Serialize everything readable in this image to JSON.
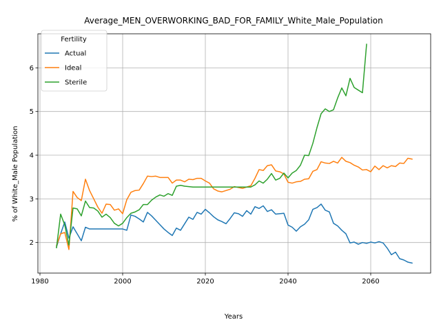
{
  "chart_data": {
    "type": "line",
    "title": "Average_MEN_OVERWORKING_BAD_FOR_FAMILY_White_Male_Population",
    "xlabel": "Years",
    "ylabel": "% of White_Male Population",
    "xlim": [
      1979.5,
      2074.5
    ],
    "ylim": [
      1.3,
      6.78
    ],
    "xticks": [
      1980,
      2000,
      2020,
      2040,
      2060
    ],
    "yticks": [
      2,
      3,
      4,
      5,
      6
    ],
    "grid": true,
    "legend": {
      "title": "Fertility",
      "position": "top-left"
    },
    "series": [
      {
        "name": "Actual",
        "color": "#1f77b4",
        "x": [
          1984,
          1985,
          1986,
          1987,
          1988,
          1989,
          1990,
          1991,
          1992,
          1993,
          1994,
          1995,
          1996,
          1997,
          1998,
          1999,
          2000,
          2001,
          2002,
          2003,
          2004,
          2005,
          2006,
          2007,
          2008,
          2009,
          2010,
          2011,
          2012,
          2013,
          2014,
          2015,
          2016,
          2017,
          2018,
          2019,
          2020,
          2021,
          2022,
          2023,
          2024,
          2025,
          2026,
          2027,
          2028,
          2029,
          2030,
          2031,
          2032,
          2033,
          2034,
          2035,
          2036,
          2037,
          2038,
          2039,
          2040,
          2041,
          2042,
          2043,
          2044,
          2045,
          2046,
          2047,
          2048,
          2049,
          2050,
          2051,
          2052,
          2053,
          2054,
          2055,
          2056,
          2057,
          2058,
          2059,
          2060,
          2061,
          2062,
          2063,
          2064,
          2065,
          2066,
          2067,
          2068,
          2069,
          2070
        ],
        "y": [
          1.9,
          2.2,
          2.47,
          2.1,
          2.36,
          2.2,
          2.04,
          2.35,
          2.31,
          2.31,
          2.31,
          2.31,
          2.31,
          2.31,
          2.31,
          2.31,
          2.31,
          2.28,
          2.63,
          2.6,
          2.54,
          2.47,
          2.69,
          2.61,
          2.51,
          2.41,
          2.31,
          2.23,
          2.16,
          2.33,
          2.28,
          2.43,
          2.58,
          2.53,
          2.69,
          2.65,
          2.76,
          2.68,
          2.59,
          2.52,
          2.48,
          2.43,
          2.55,
          2.68,
          2.66,
          2.6,
          2.73,
          2.65,
          2.82,
          2.78,
          2.84,
          2.71,
          2.75,
          2.65,
          2.66,
          2.67,
          2.4,
          2.35,
          2.26,
          2.36,
          2.42,
          2.52,
          2.76,
          2.8,
          2.88,
          2.74,
          2.7,
          2.44,
          2.38,
          2.28,
          2.2,
          1.99,
          2.01,
          1.96,
          2.0,
          1.98,
          2.01,
          1.99,
          2.02,
          1.99,
          1.87,
          1.72,
          1.78,
          1.63,
          1.6,
          1.55,
          1.53
        ]
      },
      {
        "name": "Ideal",
        "color": "#ff7f0e",
        "x": [
          1984,
          1985,
          1986,
          1987,
          1988,
          1989,
          1990,
          1991,
          1992,
          1993,
          1994,
          1995,
          1996,
          1997,
          1998,
          1999,
          2000,
          2001,
          2002,
          2003,
          2004,
          2005,
          2006,
          2007,
          2008,
          2009,
          2010,
          2011,
          2012,
          2013,
          2014,
          2015,
          2016,
          2017,
          2018,
          2019,
          2020,
          2021,
          2022,
          2023,
          2024,
          2025,
          2026,
          2027,
          2028,
          2029,
          2030,
          2031,
          2032,
          2033,
          2034,
          2035,
          2036,
          2037,
          2038,
          2039,
          2040,
          2041,
          2042,
          2043,
          2044,
          2045,
          2046,
          2047,
          2048,
          2049,
          2050,
          2051,
          2052,
          2053,
          2054,
          2055,
          2056,
          2057,
          2058,
          2059,
          2060,
          2061,
          2062,
          2063,
          2064,
          2065,
          2066,
          2067,
          2068,
          2069,
          2070
        ],
        "y": [
          1.93,
          2.2,
          2.23,
          1.84,
          3.17,
          3.03,
          2.96,
          3.45,
          3.19,
          3.0,
          2.81,
          2.67,
          2.88,
          2.87,
          2.74,
          2.77,
          2.66,
          2.98,
          3.15,
          3.19,
          3.2,
          3.35,
          3.52,
          3.51,
          3.52,
          3.49,
          3.49,
          3.49,
          3.36,
          3.43,
          3.43,
          3.39,
          3.45,
          3.44,
          3.47,
          3.47,
          3.41,
          3.36,
          3.23,
          3.18,
          3.16,
          3.19,
          3.22,
          3.28,
          3.26,
          3.24,
          3.27,
          3.3,
          3.47,
          3.67,
          3.65,
          3.76,
          3.78,
          3.64,
          3.62,
          3.57,
          3.38,
          3.36,
          3.39,
          3.4,
          3.45,
          3.46,
          3.63,
          3.67,
          3.85,
          3.82,
          3.81,
          3.86,
          3.82,
          3.95,
          3.86,
          3.83,
          3.77,
          3.73,
          3.66,
          3.67,
          3.62,
          3.75,
          3.67,
          3.76,
          3.71,
          3.76,
          3.74,
          3.82,
          3.81,
          3.93,
          3.91
        ]
      },
      {
        "name": "Sterile",
        "color": "#2ca02c",
        "x": [
          1984,
          1985,
          1986,
          1987,
          1988,
          1989,
          1990,
          1991,
          1992,
          1993,
          1994,
          1995,
          1996,
          1997,
          1998,
          1999,
          2000,
          2001,
          2002,
          2003,
          2004,
          2005,
          2006,
          2007,
          2008,
          2009,
          2010,
          2011,
          2012,
          2013,
          2014,
          2015,
          2016,
          2017,
          2018,
          2019,
          2020,
          2021,
          2022,
          2023,
          2024,
          2025,
          2026,
          2027,
          2028,
          2029,
          2030,
          2031,
          2032,
          2033,
          2034,
          2035,
          2036,
          2037,
          2038,
          2039,
          2040,
          2041,
          2042,
          2043,
          2044,
          2045,
          2046,
          2047,
          2048,
          2049,
          2050,
          2051,
          2052,
          2053,
          2054,
          2055,
          2056,
          2057,
          2058,
          2059
        ],
        "y": [
          1.88,
          2.65,
          2.4,
          1.94,
          2.79,
          2.77,
          2.61,
          2.95,
          2.8,
          2.79,
          2.72,
          2.58,
          2.65,
          2.57,
          2.44,
          2.38,
          2.44,
          2.57,
          2.67,
          2.7,
          2.75,
          2.87,
          2.87,
          2.97,
          3.04,
          3.09,
          3.06,
          3.12,
          3.08,
          3.29,
          3.31,
          3.29,
          3.28,
          3.27,
          3.27,
          3.27,
          3.27,
          3.27,
          3.27,
          3.27,
          3.27,
          3.27,
          3.27,
          3.27,
          3.27,
          3.27,
          3.27,
          3.27,
          3.32,
          3.41,
          3.36,
          3.45,
          3.58,
          3.43,
          3.47,
          3.59,
          3.48,
          3.59,
          3.65,
          3.77,
          4.0,
          3.99,
          4.27,
          4.63,
          4.95,
          5.06,
          5.0,
          5.04,
          5.31,
          5.54,
          5.36,
          5.76,
          5.55,
          5.49,
          5.43,
          6.54
        ]
      }
    ]
  }
}
